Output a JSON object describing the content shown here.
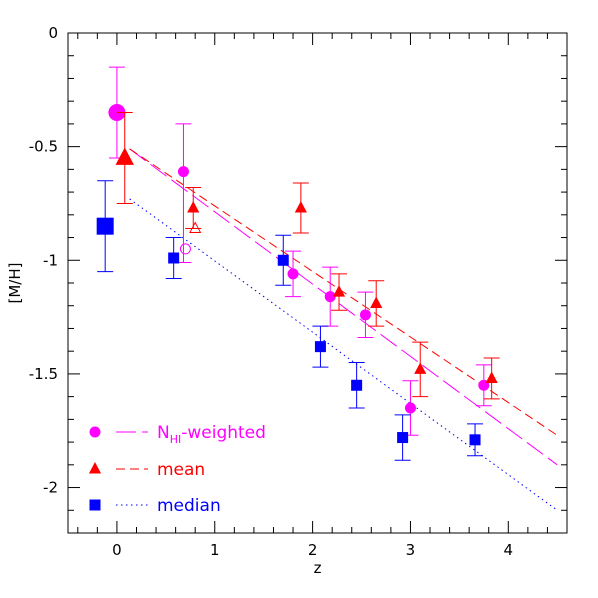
{
  "chart_data": {
    "type": "scatter",
    "xlabel": "z",
    "ylabel": "[M/H]",
    "xlim": [
      -0.5,
      4.6
    ],
    "ylim": [
      -2.2,
      0
    ],
    "x_ticks": [
      0,
      1,
      2,
      3,
      4
    ],
    "y_ticks": [
      0,
      -0.5,
      -1,
      -1.5,
      -2
    ],
    "x_tick_labels": [
      "0",
      "1",
      "2",
      "3",
      "4"
    ],
    "y_tick_labels": [
      "0",
      "-0.5",
      "-1",
      "-1.5",
      "-2"
    ],
    "legend_position": "bottom-left",
    "series": [
      {
        "name": "N_HI-weighted",
        "name_main": "N",
        "name_sub": "HI",
        "name_rest": "-weighted",
        "color": "#ff00ff",
        "marker": "circle",
        "line_style": "long-dash",
        "fit": {
          "x0": 0.13,
          "y0": -0.51,
          "x1": 4.5,
          "y1": -1.9
        },
        "points": [
          {
            "x": 0.0,
            "y": -0.35,
            "err": 0.2,
            "size": "large"
          },
          {
            "x": 0.68,
            "y": -0.61,
            "err_low": 0.4,
            "err_high": 0.21
          },
          {
            "x": 0.7,
            "y": -0.95,
            "err": 0.0,
            "open": true
          },
          {
            "x": 1.8,
            "y": -1.06,
            "err": 0.1
          },
          {
            "x": 2.18,
            "y": -1.16,
            "err": 0.13
          },
          {
            "x": 2.54,
            "y": -1.24,
            "err": 0.1
          },
          {
            "x": 3.0,
            "y": -1.65,
            "err": 0.12
          },
          {
            "x": 3.75,
            "y": -1.55,
            "err": 0.09
          }
        ]
      },
      {
        "name": "mean",
        "color": "#ff0000",
        "marker": "triangle",
        "line_style": "dash",
        "fit": {
          "x0": 0.13,
          "y0": -0.51,
          "x1": 4.5,
          "y1": -1.77
        },
        "points": [
          {
            "x": 0.08,
            "y": -0.55,
            "err": 0.2,
            "size": "large"
          },
          {
            "x": 0.78,
            "y": -0.77,
            "err": 0.09
          },
          {
            "x": 0.8,
            "y": -0.86,
            "err": 0.0,
            "open": true
          },
          {
            "x": 1.88,
            "y": -0.77,
            "err": 0.11
          },
          {
            "x": 2.27,
            "y": -1.14,
            "err": 0.08
          },
          {
            "x": 2.65,
            "y": -1.19,
            "err": 0.1
          },
          {
            "x": 3.1,
            "y": -1.48,
            "err": 0.12
          },
          {
            "x": 3.83,
            "y": -1.52,
            "err": 0.09
          }
        ]
      },
      {
        "name": "median",
        "color": "#0000ff",
        "marker": "square",
        "line_style": "dot",
        "fit": {
          "x0": 0.13,
          "y0": -0.73,
          "x1": 4.5,
          "y1": -2.1
        },
        "points": [
          {
            "x": -0.12,
            "y": -0.85,
            "err": 0.2,
            "size": "large"
          },
          {
            "x": 0.58,
            "y": -0.99,
            "err": 0.09
          },
          {
            "x": 1.7,
            "y": -1.0,
            "err": 0.11
          },
          {
            "x": 2.08,
            "y": -1.38,
            "err": 0.09
          },
          {
            "x": 2.45,
            "y": -1.55,
            "err": 0.1
          },
          {
            "x": 2.92,
            "y": -1.78,
            "err": 0.1
          },
          {
            "x": 3.66,
            "y": -1.79,
            "err": 0.07
          }
        ]
      }
    ]
  }
}
